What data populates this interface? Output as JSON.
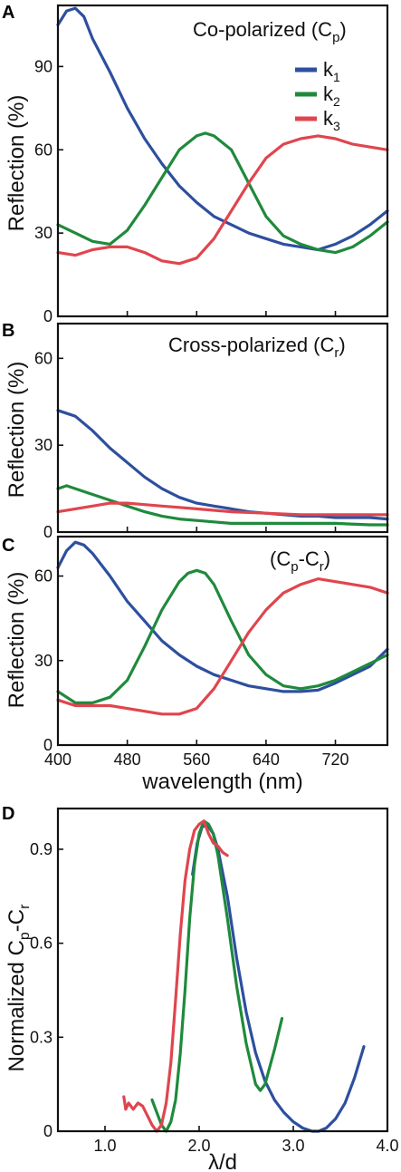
{
  "colors": {
    "k1": "#2d4f9e",
    "k2": "#1f8a3c",
    "k3": "#e0454e"
  },
  "chart_data": [
    {
      "panel": "A",
      "type": "line",
      "annotation_main": "Co-polarized (C",
      "annotation_sub": "p",
      "annotation_end": ")",
      "ylabel": "Reflection (%)",
      "xlim": [
        400,
        780
      ],
      "ylim": [
        0,
        112
      ],
      "yticks": [
        "0",
        "30",
        "60",
        "90"
      ],
      "ytick_values": [
        0,
        30,
        60,
        90
      ],
      "legend": [
        {
          "key": "k1",
          "main": "k",
          "sub": "1"
        },
        {
          "key": "k2",
          "main": "k",
          "sub": "2"
        },
        {
          "key": "k3",
          "main": "k",
          "sub": "3"
        }
      ],
      "series": [
        {
          "key": "k1",
          "x": [
            400,
            410,
            420,
            430,
            440,
            460,
            480,
            500,
            520,
            540,
            560,
            580,
            600,
            620,
            640,
            660,
            680,
            700,
            720,
            740,
            760,
            780
          ],
          "y": [
            105,
            110,
            111,
            108,
            100,
            88,
            75,
            64,
            55,
            47,
            41,
            36,
            33,
            30,
            28,
            26,
            25,
            24,
            26,
            29,
            33,
            38
          ]
        },
        {
          "key": "k2",
          "x": [
            400,
            420,
            440,
            460,
            480,
            500,
            520,
            540,
            560,
            570,
            580,
            600,
            620,
            640,
            660,
            680,
            700,
            720,
            740,
            760,
            780
          ],
          "y": [
            33,
            30,
            27,
            26,
            31,
            40,
            50,
            60,
            65,
            66,
            65,
            60,
            48,
            36,
            29,
            26,
            24,
            23,
            25,
            29,
            34
          ]
        },
        {
          "key": "k3",
          "x": [
            400,
            420,
            440,
            460,
            480,
            500,
            520,
            540,
            560,
            580,
            600,
            620,
            640,
            660,
            680,
            700,
            720,
            740,
            760,
            780
          ],
          "y": [
            23,
            22,
            24,
            25,
            25,
            23,
            20,
            19,
            21,
            28,
            38,
            48,
            57,
            62,
            64,
            65,
            64,
            62,
            61,
            60
          ]
        }
      ]
    },
    {
      "panel": "B",
      "type": "line",
      "annotation_main": "Cross-polarized (C",
      "annotation_sub": "r",
      "annotation_end": ")",
      "ylabel": "Reflection (%)",
      "xlim": [
        400,
        780
      ],
      "ylim": [
        0,
        72
      ],
      "yticks": [
        "0",
        "30",
        "60"
      ],
      "ytick_values": [
        0,
        30,
        60
      ],
      "series": [
        {
          "key": "k1",
          "x": [
            400,
            420,
            440,
            460,
            480,
            500,
            520,
            540,
            560,
            580,
            600,
            620,
            640,
            660,
            680,
            700,
            720,
            740,
            760,
            780
          ],
          "y": [
            42,
            40,
            35,
            29,
            24,
            19,
            15,
            12,
            10,
            9,
            8,
            7,
            6.5,
            6,
            5.5,
            5.5,
            5,
            5,
            5,
            4.5
          ]
        },
        {
          "key": "k2",
          "x": [
            400,
            410,
            420,
            440,
            460,
            480,
            500,
            520,
            540,
            560,
            580,
            600,
            640,
            680,
            720,
            760,
            780
          ],
          "y": [
            15,
            16,
            15,
            13,
            11,
            9,
            7,
            5.5,
            4.5,
            4,
            3.5,
            3,
            3,
            3,
            3,
            2.5,
            2.5
          ]
        },
        {
          "key": "k3",
          "x": [
            400,
            420,
            440,
            460,
            480,
            500,
            520,
            540,
            560,
            580,
            600,
            640,
            680,
            720,
            760,
            780
          ],
          "y": [
            7,
            8,
            9,
            10,
            10,
            9.5,
            9,
            8.5,
            8,
            7.5,
            7,
            6.5,
            6,
            6,
            6,
            6
          ]
        }
      ]
    },
    {
      "panel": "C",
      "type": "line",
      "annotation_main": "(C",
      "annotation_sub1": "p",
      "annotation_mid": "-C",
      "annotation_sub2": "r",
      "annotation_end": ")",
      "ylabel": "Reflection (%)",
      "xlabel": "wavelength (nm)",
      "xlim": [
        400,
        780
      ],
      "ylim": [
        0,
        74
      ],
      "xticks": [
        "400",
        "480",
        "560",
        "640",
        "720"
      ],
      "xtick_values": [
        400,
        480,
        560,
        640,
        720
      ],
      "yticks": [
        "0",
        "30",
        "60"
      ],
      "ytick_values": [
        0,
        30,
        60
      ],
      "series": [
        {
          "key": "k1",
          "x": [
            400,
            410,
            420,
            430,
            440,
            460,
            480,
            500,
            520,
            540,
            560,
            580,
            600,
            620,
            640,
            660,
            680,
            700,
            720,
            740,
            760,
            780
          ],
          "y": [
            63,
            69,
            72,
            71,
            68,
            60,
            51,
            44,
            37,
            32,
            28,
            25,
            23,
            21,
            20,
            19,
            19,
            19.5,
            22,
            25,
            28,
            34
          ]
        },
        {
          "key": "k2",
          "x": [
            400,
            420,
            440,
            460,
            480,
            500,
            520,
            540,
            550,
            560,
            570,
            580,
            600,
            620,
            640,
            660,
            680,
            700,
            720,
            740,
            760,
            780
          ],
          "y": [
            19,
            15,
            15,
            17,
            23,
            35,
            48,
            58,
            61,
            62,
            61,
            57,
            44,
            32,
            25,
            21,
            20,
            21,
            23,
            26,
            29,
            32
          ]
        },
        {
          "key": "k3",
          "x": [
            400,
            420,
            440,
            460,
            480,
            500,
            520,
            540,
            560,
            580,
            600,
            620,
            640,
            660,
            680,
            700,
            720,
            740,
            760,
            780
          ],
          "y": [
            16,
            14,
            14,
            14,
            13,
            12,
            11,
            11,
            13,
            20,
            30,
            40,
            48,
            54,
            57,
            59,
            58,
            57,
            56,
            54
          ]
        }
      ]
    },
    {
      "panel": "D",
      "type": "line",
      "ylabel_main": "Normalized C",
      "ylabel_sub1": "p",
      "ylabel_mid": "-C",
      "ylabel_sub2": "r",
      "xlabel": "λ/d",
      "xlim": [
        0.5,
        4.0
      ],
      "ylim": [
        0,
        1.03
      ],
      "xticks": [
        "1.0",
        "2.0",
        "3.0",
        "4.0"
      ],
      "xtick_values": [
        1.0,
        2.0,
        3.0,
        4.0
      ],
      "yticks": [
        "0",
        "0.3",
        "0.6",
        "0.9"
      ],
      "ytick_values": [
        0,
        0.3,
        0.6,
        0.9
      ],
      "series": [
        {
          "key": "k1",
          "x": [
            1.93,
            1.98,
            2.03,
            2.08,
            2.15,
            2.2,
            2.3,
            2.4,
            2.5,
            2.6,
            2.7,
            2.8,
            2.9,
            3.0,
            3.1,
            3.2,
            3.27,
            3.35,
            3.45,
            3.55,
            3.65,
            3.75
          ],
          "y": [
            0.82,
            0.92,
            0.97,
            0.98,
            0.95,
            0.9,
            0.75,
            0.55,
            0.38,
            0.25,
            0.16,
            0.1,
            0.06,
            0.03,
            0.01,
            0.0,
            0.0,
            0.01,
            0.04,
            0.09,
            0.17,
            0.27
          ]
        },
        {
          "key": "k2",
          "x": [
            1.5,
            1.55,
            1.6,
            1.65,
            1.7,
            1.75,
            1.8,
            1.85,
            1.9,
            1.95,
            2.0,
            2.05,
            2.1,
            2.15,
            2.2,
            2.3,
            2.4,
            2.5,
            2.6,
            2.65,
            2.7,
            2.8,
            2.88
          ],
          "y": [
            0.1,
            0.06,
            0.02,
            0.0,
            0.03,
            0.1,
            0.25,
            0.45,
            0.68,
            0.85,
            0.95,
            0.99,
            0.98,
            0.95,
            0.88,
            0.68,
            0.46,
            0.28,
            0.15,
            0.13,
            0.15,
            0.26,
            0.36
          ]
        },
        {
          "key": "k3",
          "x": [
            1.2,
            1.22,
            1.25,
            1.3,
            1.35,
            1.4,
            1.45,
            1.5,
            1.55,
            1.6,
            1.65,
            1.7,
            1.75,
            1.8,
            1.85,
            1.9,
            1.95,
            2.0,
            2.05,
            2.1,
            2.15,
            2.2,
            2.25,
            2.3
          ],
          "y": [
            0.11,
            0.07,
            0.09,
            0.07,
            0.09,
            0.08,
            0.05,
            0.02,
            0.0,
            0.02,
            0.09,
            0.22,
            0.42,
            0.63,
            0.8,
            0.9,
            0.96,
            0.98,
            0.99,
            0.95,
            0.92,
            0.91,
            0.89,
            0.88
          ]
        }
      ]
    }
  ]
}
